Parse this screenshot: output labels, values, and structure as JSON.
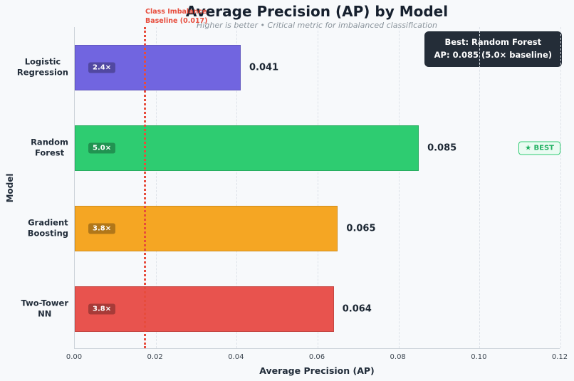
{
  "colors": {
    "background": "#f7f9fb",
    "title": "#16202e",
    "subtitle": "#8a949c",
    "baseline": "#e74c3c",
    "annotation_bg": "#242d38",
    "best_badge_green": "#2ecc71"
  },
  "chart_data": {
    "type": "bar",
    "orientation": "horizontal",
    "title": "Average Precision (AP) by Model",
    "subtitle": "Higher is better • Critical metric for imbalanced classification",
    "xlabel": "Average Precision (AP)",
    "ylabel": "Model",
    "xlim": [
      0,
      0.12
    ],
    "xticks": [
      "0.00",
      "0.02",
      "0.04",
      "0.06",
      "0.08",
      "0.10",
      "0.12"
    ],
    "grid": true,
    "categories": [
      "Logistic\nRegression",
      "Random\nForest",
      "Gradient\nBoosting",
      "Two-Tower\nNN"
    ],
    "values": [
      0.041,
      0.085,
      0.065,
      0.064
    ],
    "value_labels": [
      "0.041",
      "0.085",
      "0.065",
      "0.064"
    ],
    "bar_multiplier_labels": [
      "2.4×",
      "5.0×",
      "3.8×",
      "3.8×"
    ],
    "bar_colors": [
      "#7165e0",
      "#2ecc71",
      "#f5a623",
      "#e8534e"
    ],
    "baseline": {
      "value": 0.017,
      "label": "Class Imbalance\nBaseline (0.017)"
    },
    "best": {
      "index": 1,
      "badge": "★ BEST"
    },
    "annotation": {
      "line1": "Best: Random Forest",
      "line2": "AP: 0.085 (5.0× baseline)"
    }
  }
}
